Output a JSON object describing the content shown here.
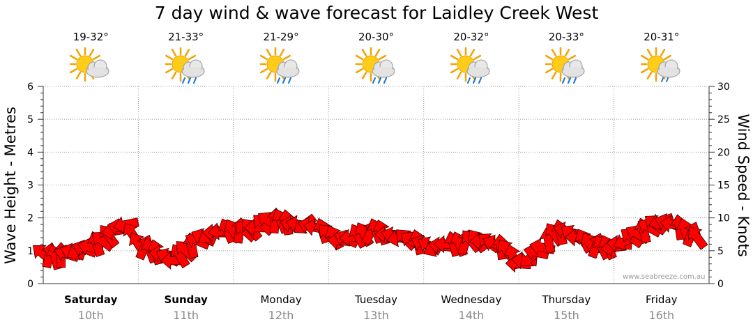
{
  "chart_data": {
    "type": "line",
    "title": "7 day wind & wave forecast for Laidley Creek West",
    "y_left_label": "Wave Height - Metres",
    "y_right_label": "Wind Speed - Knots",
    "y_left_range": [
      0,
      6
    ],
    "y_left_ticks": [
      "0",
      "1",
      "2",
      "3",
      "4",
      "5",
      "6"
    ],
    "y_right_range": [
      0,
      30
    ],
    "y_right_ticks": [
      "0",
      "5",
      "10",
      "15",
      "20",
      "25",
      "30"
    ],
    "grid": true,
    "days": [
      {
        "name": "Saturday",
        "date": "10th",
        "temp": "19-32°",
        "icon": "sun-cloud-icon",
        "bold": true
      },
      {
        "name": "Sunday",
        "date": "11th",
        "temp": "21-33°",
        "icon": "sun-cloud-rain-icon",
        "bold": true
      },
      {
        "name": "Monday",
        "date": "12th",
        "temp": "21-29°",
        "icon": "sun-cloud-rain-icon",
        "bold": false
      },
      {
        "name": "Tuesday",
        "date": "13th",
        "temp": "20-30°",
        "icon": "sun-cloud-rain-icon",
        "bold": false
      },
      {
        "name": "Wednesday",
        "date": "14th",
        "temp": "20-32°",
        "icon": "sun-cloud-rain-icon",
        "bold": false
      },
      {
        "name": "Thursday",
        "date": "15th",
        "temp": "20-33°",
        "icon": "sun-cloud-rain-icon",
        "bold": false
      },
      {
        "name": "Friday",
        "date": "16th",
        "temp": "20-31°",
        "icon": "sun-cloud-drizzle-icon",
        "bold": false
      }
    ],
    "series": [
      {
        "axis": "right",
        "x_hours": [
          0,
          3,
          6,
          9,
          12,
          15,
          18,
          21,
          24,
          27,
          30,
          33,
          36,
          39,
          42,
          45,
          48,
          51,
          54,
          57,
          60,
          63,
          66,
          69,
          72,
          75,
          78,
          81,
          84,
          87,
          90,
          93,
          96,
          99,
          102,
          105,
          108,
          111,
          114,
          117,
          120,
          123,
          126,
          129,
          132,
          135,
          138,
          141,
          144,
          147,
          150,
          153,
          156,
          159,
          162,
          165
        ],
        "values": [
          4.5,
          4,
          4.5,
          5,
          5.5,
          6.5,
          8,
          9,
          6,
          5,
          4.5,
          3.5,
          5,
          6.5,
          7.5,
          8,
          8,
          8,
          8.5,
          9.5,
          9.5,
          9,
          9,
          8.5,
          7.5,
          6.5,
          7,
          7.5,
          8,
          7.5,
          7,
          6.5,
          6,
          5.5,
          6,
          6,
          6.5,
          6.5,
          6,
          5,
          3,
          4,
          5.5,
          7.5,
          8,
          7,
          6,
          5.5,
          5.5,
          6.5,
          7.5,
          8.5,
          9.5,
          9,
          8,
          7
        ]
      }
    ],
    "watermark": "www.seabreeze.com.au",
    "colors": {
      "arrow": "#ff0000",
      "arrow_outline": "#400000",
      "grid": "#999999",
      "axis": "#333333"
    }
  }
}
